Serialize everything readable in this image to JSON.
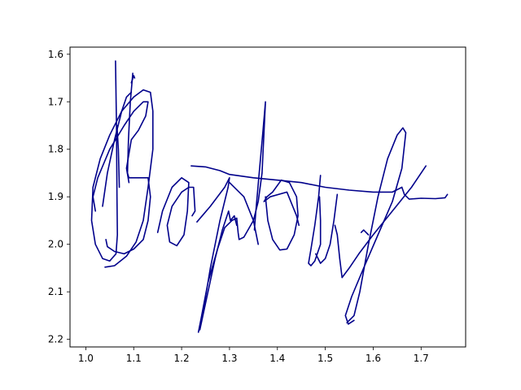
{
  "chart_data": {
    "type": "line",
    "title": "",
    "xlabel": "",
    "ylabel": "",
    "xlim": [
      0.967,
      1.793
    ],
    "ylim": [
      2.216,
      1.585
    ],
    "y_inverted": true,
    "grid": false,
    "x_ticks": [
      "1.0",
      "1.1",
      "1.2",
      "1.3",
      "1.4",
      "1.5",
      "1.6",
      "1.7"
    ],
    "x_tick_values": [
      1.0,
      1.1,
      1.2,
      1.3,
      1.4,
      1.5,
      1.6,
      1.7
    ],
    "y_ticks": [
      "1.6",
      "1.7",
      "1.8",
      "1.9",
      "2.0",
      "2.1",
      "2.2"
    ],
    "y_tick_values": [
      1.6,
      1.7,
      1.8,
      1.9,
      2.0,
      2.1,
      2.2
    ],
    "series_color": "#00008b",
    "series": [
      {
        "values": [
          [
            1.062,
            1.614
          ],
          [
            1.064,
            1.75
          ],
          [
            1.065,
            1.9
          ],
          [
            1.066,
            1.98
          ],
          [
            1.063,
            2.02
          ],
          [
            1.05,
            2.035
          ],
          [
            1.035,
            2.03
          ],
          [
            1.02,
            2.0
          ],
          [
            1.012,
            1.95
          ],
          [
            1.015,
            1.88
          ],
          [
            1.03,
            1.82
          ],
          [
            1.05,
            1.77
          ],
          [
            1.075,
            1.72
          ],
          [
            1.1,
            1.69
          ],
          [
            1.12,
            1.675
          ],
          [
            1.135,
            1.68
          ],
          [
            1.14,
            1.72
          ],
          [
            1.14,
            1.8
          ],
          [
            1.13,
            1.88
          ],
          [
            1.12,
            1.95
          ],
          [
            1.105,
            1.995
          ],
          [
            1.085,
            2.025
          ],
          [
            1.06,
            2.045
          ],
          [
            1.04,
            2.048
          ]
        ]
      },
      {
        "values": [
          [
            1.098,
            1.64
          ],
          [
            1.093,
            1.7
          ],
          [
            1.089,
            1.78
          ],
          [
            1.087,
            1.85
          ],
          [
            1.09,
            1.86
          ],
          [
            1.1,
            1.86
          ],
          [
            1.13,
            1.86
          ],
          [
            1.135,
            1.9
          ],
          [
            1.13,
            1.95
          ],
          [
            1.12,
            1.99
          ],
          [
            1.1,
            2.01
          ],
          [
            1.08,
            2.02
          ],
          [
            1.06,
            2.015
          ],
          [
            1.045,
            2.005
          ],
          [
            1.042,
            1.99
          ]
        ]
      },
      {
        "values": [
          [
            1.02,
            1.93
          ],
          [
            1.015,
            1.9
          ],
          [
            1.025,
            1.86
          ],
          [
            1.05,
            1.8
          ],
          [
            1.08,
            1.75
          ],
          [
            1.1,
            1.72
          ],
          [
            1.12,
            1.7
          ],
          [
            1.13,
            1.7
          ],
          [
            1.125,
            1.73
          ],
          [
            1.11,
            1.76
          ],
          [
            1.095,
            1.78
          ],
          [
            1.085,
            1.84
          ],
          [
            1.09,
            1.87
          ]
        ]
      },
      {
        "values": [
          [
            1.035,
            1.92
          ],
          [
            1.045,
            1.85
          ],
          [
            1.06,
            1.78
          ],
          [
            1.075,
            1.72
          ],
          [
            1.085,
            1.69
          ],
          [
            1.095,
            1.68
          ]
        ]
      },
      {
        "values": [
          [
            1.065,
            1.75
          ],
          [
            1.068,
            1.8
          ],
          [
            1.07,
            1.88
          ]
        ]
      },
      {
        "values": [
          [
            1.095,
            1.66
          ],
          [
            1.1,
            1.645
          ],
          [
            1.102,
            1.65
          ]
        ]
      },
      {
        "values": [
          [
            1.15,
            1.975
          ],
          [
            1.16,
            1.93
          ],
          [
            1.18,
            1.88
          ],
          [
            1.2,
            1.86
          ],
          [
            1.215,
            1.87
          ],
          [
            1.212,
            1.93
          ],
          [
            1.205,
            1.98
          ],
          [
            1.19,
            2.003
          ],
          [
            1.175,
            1.995
          ],
          [
            1.17,
            1.96
          ],
          [
            1.18,
            1.92
          ],
          [
            1.2,
            1.89
          ],
          [
            1.215,
            1.88
          ],
          [
            1.225,
            1.88
          ],
          [
            1.228,
            1.93
          ],
          [
            1.222,
            1.94
          ]
        ]
      },
      {
        "values": [
          [
            1.22,
            1.835
          ],
          [
            1.25,
            1.837
          ],
          [
            1.28,
            1.845
          ],
          [
            1.3,
            1.853
          ],
          [
            1.35,
            1.86
          ],
          [
            1.4,
            1.865
          ],
          [
            1.45,
            1.87
          ],
          [
            1.5,
            1.88
          ],
          [
            1.55,
            1.886
          ],
          [
            1.6,
            1.89
          ],
          [
            1.64,
            1.89
          ],
          [
            1.66,
            1.88
          ]
        ]
      },
      {
        "values": [
          [
            1.232,
            1.953
          ],
          [
            1.26,
            1.92
          ],
          [
            1.29,
            1.88
          ],
          [
            1.3,
            1.86
          ],
          [
            1.297,
            1.88
          ],
          [
            1.28,
            1.95
          ],
          [
            1.26,
            2.05
          ],
          [
            1.245,
            2.14
          ],
          [
            1.235,
            2.185
          ],
          [
            1.24,
            2.16
          ],
          [
            1.255,
            2.08
          ],
          [
            1.275,
            2.01
          ],
          [
            1.29,
            1.965
          ],
          [
            1.305,
            1.95
          ],
          [
            1.315,
            1.945
          ],
          [
            1.318,
            1.975
          ],
          [
            1.32,
            1.99
          ],
          [
            1.33,
            1.985
          ],
          [
            1.35,
            1.95
          ],
          [
            1.36,
            1.91
          ],
          [
            1.368,
            1.85
          ],
          [
            1.375,
            1.7
          ],
          [
            1.37,
            1.76
          ],
          [
            1.362,
            1.85
          ],
          [
            1.355,
            1.93
          ],
          [
            1.352,
            1.97
          ]
        ]
      },
      {
        "values": [
          [
            1.238,
            2.18
          ],
          [
            1.255,
            2.1
          ],
          [
            1.27,
            2.03
          ],
          [
            1.285,
            1.97
          ],
          [
            1.298,
            1.93
          ],
          [
            1.302,
            1.95
          ],
          [
            1.31,
            1.94
          ],
          [
            1.315,
            1.96
          ]
        ]
      },
      {
        "values": [
          [
            1.3,
            1.87
          ],
          [
            1.33,
            1.9
          ],
          [
            1.35,
            1.95
          ],
          [
            1.36,
            2.0
          ]
        ]
      },
      {
        "values": [
          [
            1.375,
            1.9
          ],
          [
            1.38,
            1.95
          ],
          [
            1.39,
            1.99
          ],
          [
            1.405,
            2.012
          ],
          [
            1.42,
            2.01
          ],
          [
            1.435,
            1.98
          ],
          [
            1.443,
            1.94
          ],
          [
            1.44,
            1.9
          ],
          [
            1.425,
            1.87
          ],
          [
            1.408,
            1.865
          ],
          [
            1.39,
            1.89
          ],
          [
            1.378,
            1.9
          ],
          [
            1.372,
            1.91
          ],
          [
            1.385,
            1.9
          ],
          [
            1.42,
            1.89
          ],
          [
            1.44,
            1.94
          ],
          [
            1.445,
            1.96
          ]
        ]
      },
      {
        "values": [
          [
            1.49,
            1.855
          ],
          [
            1.486,
            1.9
          ],
          [
            1.478,
            1.96
          ],
          [
            1.47,
            2.01
          ],
          [
            1.465,
            2.04
          ],
          [
            1.47,
            2.045
          ],
          [
            1.478,
            2.035
          ],
          [
            1.49,
            2.0
          ],
          [
            1.49,
            1.95
          ],
          [
            1.488,
            1.9
          ]
        ]
      },
      {
        "values": [
          [
            1.525,
            1.895
          ],
          [
            1.518,
            1.95
          ],
          [
            1.51,
            2.0
          ],
          [
            1.5,
            2.03
          ],
          [
            1.49,
            2.04
          ],
          [
            1.48,
            2.02
          ]
        ]
      },
      {
        "values": [
          [
            1.71,
            1.835
          ],
          [
            1.68,
            1.88
          ],
          [
            1.64,
            1.93
          ],
          [
            1.6,
            1.98
          ],
          [
            1.57,
            2.02
          ],
          [
            1.55,
            2.05
          ],
          [
            1.535,
            2.07
          ],
          [
            1.53,
            2.03
          ],
          [
            1.525,
            1.98
          ],
          [
            1.52,
            1.96
          ]
        ]
      },
      {
        "values": [
          [
            1.575,
            1.975
          ],
          [
            1.58,
            1.97
          ],
          [
            1.59,
            1.98
          ]
        ]
      },
      {
        "values": [
          [
            1.545,
            2.165
          ],
          [
            1.56,
            2.15
          ],
          [
            1.572,
            2.1
          ],
          [
            1.59,
            2.0
          ],
          [
            1.61,
            1.9
          ],
          [
            1.63,
            1.82
          ],
          [
            1.65,
            1.77
          ],
          [
            1.662,
            1.755
          ],
          [
            1.668,
            1.765
          ],
          [
            1.66,
            1.84
          ],
          [
            1.64,
            1.91
          ],
          [
            1.61,
            1.98
          ],
          [
            1.58,
            2.05
          ],
          [
            1.555,
            2.11
          ],
          [
            1.542,
            2.15
          ],
          [
            1.548,
            2.168
          ],
          [
            1.56,
            2.16
          ]
        ]
      },
      {
        "values": [
          [
            1.66,
            1.88
          ],
          [
            1.665,
            1.895
          ],
          [
            1.675,
            1.905
          ],
          [
            1.7,
            1.903
          ],
          [
            1.73,
            1.904
          ],
          [
            1.75,
            1.902
          ],
          [
            1.755,
            1.895
          ]
        ]
      }
    ]
  }
}
